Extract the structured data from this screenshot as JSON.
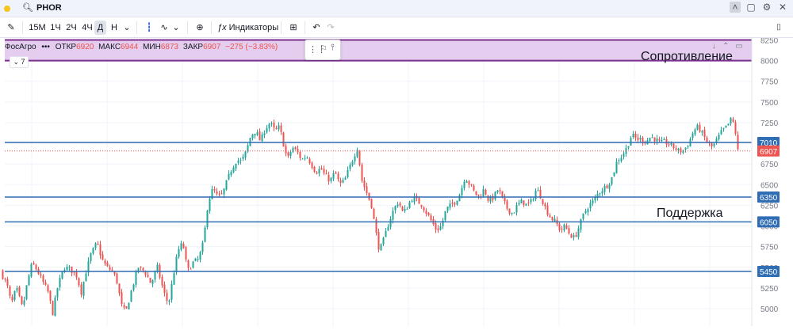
{
  "window": {
    "ticker": "PHOR",
    "controls": [
      "˄",
      "▢",
      "⚙",
      "✕"
    ]
  },
  "toolbar": {
    "timeframes": [
      "15М",
      "1Ч",
      "2Ч",
      "4Ч",
      "Д",
      "Н"
    ],
    "active_timeframe": "Д",
    "indicators_label": "Индикаторы"
  },
  "legend": {
    "name": "ФосАгро",
    "open_label": "ОТКР",
    "open_value": "6920",
    "high_label": "МАКС",
    "high_value": "6944",
    "low_label": "МИН",
    "low_value": "6873",
    "close_label": "ЗАКР",
    "close_value": "6907",
    "change": "−275 (−3.83%)",
    "collapsed_count": "7"
  },
  "colors": {
    "up": "#26a69a",
    "down": "#ef5350",
    "hline": "#2f6db5",
    "zone_fill": "#e4cdee",
    "zone_border": "#7b2f8f",
    "last_price": "#ef5350"
  },
  "chart_data": {
    "type": "candlestick",
    "y_axis_ticks": [
      5000,
      5250,
      5500,
      5750,
      6000,
      6250,
      6500,
      6750,
      7000,
      7250,
      7500,
      7750,
      8000,
      8250
    ],
    "y_range": [
      4850,
      8300
    ],
    "annotations": {
      "resistance_label": "Сопротивление",
      "support_label": "Поддержка",
      "resistance_zone": [
        8000,
        8250
      ]
    },
    "horizontal_levels": [
      {
        "price": 7010,
        "label": "7010"
      },
      {
        "price": 6350,
        "label": "6350"
      },
      {
        "price": 6050,
        "label": "6050"
      },
      {
        "price": 5450,
        "label": "5450"
      }
    ],
    "last_price": {
      "price": 6907,
      "label": "6907"
    },
    "price_path": [
      [
        0,
        5450
      ],
      [
        8,
        5300
      ],
      [
        14,
        5050
      ],
      [
        20,
        5250
      ],
      [
        28,
        5000
      ],
      [
        34,
        5320
      ],
      [
        40,
        5550
      ],
      [
        46,
        5470
      ],
      [
        52,
        5350
      ],
      [
        60,
        5200
      ],
      [
        66,
        4950
      ],
      [
        72,
        5250
      ],
      [
        80,
        5500
      ],
      [
        88,
        5480
      ],
      [
        96,
        5400
      ],
      [
        102,
        5200
      ],
      [
        108,
        5450
      ],
      [
        114,
        5650
      ],
      [
        122,
        5800
      ],
      [
        128,
        5600
      ],
      [
        134,
        5500
      ],
      [
        142,
        5450
      ],
      [
        148,
        5300
      ],
      [
        152,
        5050
      ],
      [
        158,
        4950
      ],
      [
        166,
        5250
      ],
      [
        174,
        5500
      ],
      [
        182,
        5450
      ],
      [
        190,
        5300
      ],
      [
        198,
        5500
      ],
      [
        206,
        5200
      ],
      [
        212,
        5050
      ],
      [
        218,
        5400
      ],
      [
        224,
        5700
      ],
      [
        230,
        5800
      ],
      [
        236,
        5450
      ],
      [
        242,
        5550
      ],
      [
        250,
        5600
      ],
      [
        256,
        5800
      ],
      [
        262,
        6300
      ],
      [
        268,
        6450
      ],
      [
        274,
        6350
      ],
      [
        280,
        6380
      ],
      [
        286,
        6550
      ],
      [
        292,
        6700
      ],
      [
        298,
        6800
      ],
      [
        304,
        6780
      ],
      [
        310,
        6900
      ],
      [
        316,
        7100
      ],
      [
        322,
        7150
      ],
      [
        328,
        7020
      ],
      [
        334,
        7180
      ],
      [
        340,
        7250
      ],
      [
        346,
        7150
      ],
      [
        352,
        7200
      ],
      [
        358,
        6950
      ],
      [
        362,
        6800
      ],
      [
        368,
        6950
      ],
      [
        374,
        6900
      ],
      [
        380,
        6800
      ],
      [
        386,
        6850
      ],
      [
        392,
        6750
      ],
      [
        398,
        6650
      ],
      [
        404,
        6700
      ],
      [
        410,
        6600
      ],
      [
        416,
        6550
      ],
      [
        422,
        6650
      ],
      [
        428,
        6500
      ],
      [
        434,
        6550
      ],
      [
        440,
        6700
      ],
      [
        446,
        6850
      ],
      [
        450,
        6950
      ],
      [
        456,
        6550
      ],
      [
        462,
        6400
      ],
      [
        468,
        6250
      ],
      [
        474,
        5900
      ],
      [
        478,
        5700
      ],
      [
        484,
        5850
      ],
      [
        490,
        6050
      ],
      [
        496,
        6200
      ],
      [
        502,
        6300
      ],
      [
        508,
        6150
      ],
      [
        514,
        6250
      ],
      [
        520,
        6350
      ],
      [
        526,
        6300
      ],
      [
        532,
        6250
      ],
      [
        538,
        6150
      ],
      [
        544,
        6050
      ],
      [
        550,
        5950
      ],
      [
        556,
        6000
      ],
      [
        562,
        6200
      ],
      [
        568,
        6250
      ],
      [
        574,
        6300
      ],
      [
        580,
        6400
      ],
      [
        586,
        6600
      ],
      [
        592,
        6500
      ],
      [
        598,
        6400
      ],
      [
        604,
        6350
      ],
      [
        610,
        6450
      ],
      [
        616,
        6300
      ],
      [
        622,
        6350
      ],
      [
        628,
        6450
      ],
      [
        634,
        6300
      ],
      [
        640,
        6200
      ],
      [
        646,
        6150
      ],
      [
        652,
        6250
      ],
      [
        658,
        6300
      ],
      [
        664,
        6250
      ],
      [
        670,
        6300
      ],
      [
        676,
        6450
      ],
      [
        682,
        6350
      ],
      [
        688,
        6200
      ],
      [
        694,
        6100
      ],
      [
        700,
        6050
      ],
      [
        706,
        5950
      ],
      [
        712,
        6000
      ],
      [
        718,
        5900
      ],
      [
        724,
        5850
      ],
      [
        730,
        6000
      ],
      [
        736,
        6150
      ],
      [
        742,
        6250
      ],
      [
        748,
        6300
      ],
      [
        754,
        6400
      ],
      [
        760,
        6450
      ],
      [
        766,
        6500
      ],
      [
        772,
        6600
      ],
      [
        778,
        6800
      ],
      [
        784,
        6850
      ],
      [
        790,
        6950
      ],
      [
        796,
        7100
      ],
      [
        802,
        7050
      ],
      [
        808,
        7050
      ],
      [
        814,
        7020
      ],
      [
        820,
        7080
      ],
      [
        826,
        7050
      ],
      [
        832,
        7000
      ],
      [
        838,
        7020
      ],
      [
        844,
        6980
      ],
      [
        850,
        6950
      ],
      [
        856,
        6900
      ],
      [
        862,
        6920
      ],
      [
        868,
        7000
      ],
      [
        874,
        7150
      ],
      [
        880,
        7200
      ],
      [
        886,
        7100
      ],
      [
        892,
        7000
      ],
      [
        898,
        6950
      ],
      [
        904,
        7050
      ],
      [
        910,
        7150
      ],
      [
        916,
        7200
      ],
      [
        922,
        7300
      ],
      [
        926,
        7200
      ],
      [
        930,
        6907
      ]
    ]
  }
}
